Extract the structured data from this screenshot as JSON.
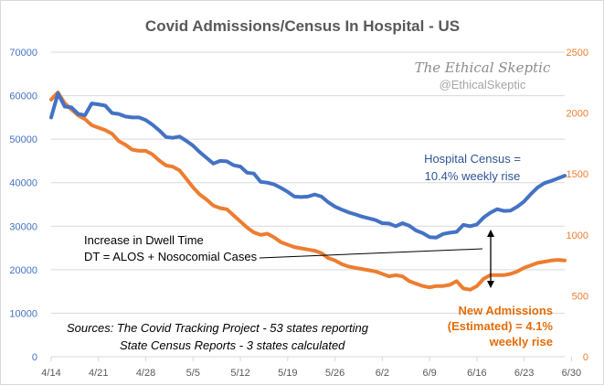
{
  "colors": {
    "census": "#4472c4",
    "admissions": "#ed7d31",
    "grid": "#d9d9d9",
    "title": "#595959"
  },
  "watermark": {
    "line1": "The Ethical Skeptic",
    "line2": "@EthicalSkeptic"
  },
  "annotations": {
    "census_label_1": "Hospital Census =",
    "census_label_2": "10.4% weekly rise",
    "dwell_line_1": "Increase in Dwell Time",
    "dwell_line_2": "DT = ALOS + Nosocomial Cases",
    "admissions_label_1": "New Admissions",
    "admissions_label_2": "(Estimated) = 4.1%",
    "admissions_label_3": "weekly rise",
    "sources_1": "Sources:  The Covid Tracking Project - 53 states reporting",
    "sources_2": "State Census Reports - 3 states calculated"
  },
  "chart_data": {
    "type": "line",
    "title": "Covid Admissions/Census  In Hospital  - US",
    "xlabel": "",
    "ylabel": "",
    "x_start": "4/14",
    "x_tick_labels": [
      "4/14",
      "4/21",
      "4/28",
      "5/5",
      "5/12",
      "5/19",
      "5/26",
      "6/2",
      "6/9",
      "6/16",
      "6/23",
      "6/30"
    ],
    "y_left": {
      "min": 0,
      "max": 70000,
      "ticks": [
        0,
        10000,
        20000,
        30000,
        40000,
        50000,
        60000,
        70000
      ]
    },
    "y_right": {
      "min": 0,
      "max": 2500,
      "ticks": [
        0,
        500,
        1000,
        1500,
        2000,
        2500
      ]
    },
    "grid": true,
    "series": [
      {
        "name": "Hospital Census",
        "axis": "left",
        "values": [
          55000,
          60500,
          57500,
          57300,
          55800,
          55500,
          58200,
          58000,
          57700,
          56000,
          55800,
          55200,
          55000,
          55000,
          54400,
          53300,
          52000,
          50500,
          50300,
          50600,
          49600,
          48500,
          47000,
          45700,
          44400,
          45000,
          44900,
          44000,
          43700,
          42300,
          42100,
          40200,
          40000,
          39600,
          38800,
          37900,
          36800,
          36700,
          36800,
          37300,
          36800,
          35500,
          34500,
          33800,
          33200,
          32700,
          32200,
          31800,
          31400,
          30700,
          30600,
          30000,
          30700,
          30100,
          29000,
          28400,
          27500,
          27400,
          28200,
          28500,
          28700,
          30300,
          30000,
          30400,
          32000,
          33100,
          33900,
          33500,
          33600,
          34500,
          35700,
          37400,
          38900,
          39900,
          40400,
          41000,
          41600
        ]
      },
      {
        "name": "New Admissions (Estimated)",
        "axis": "right",
        "values": [
          2110,
          2170,
          2080,
          2030,
          1980,
          1950,
          1900,
          1880,
          1860,
          1830,
          1770,
          1740,
          1700,
          1690,
          1690,
          1660,
          1610,
          1570,
          1560,
          1530,
          1460,
          1390,
          1330,
          1290,
          1240,
          1220,
          1210,
          1160,
          1110,
          1060,
          1020,
          1000,
          1010,
          980,
          940,
          920,
          900,
          890,
          880,
          870,
          850,
          810,
          790,
          760,
          740,
          730,
          720,
          710,
          700,
          680,
          660,
          670,
          660,
          620,
          600,
          580,
          570,
          580,
          580,
          590,
          620,
          560,
          550,
          580,
          640,
          670,
          670,
          670,
          680,
          700,
          730,
          750,
          770,
          780,
          790,
          795,
          790
        ]
      }
    ]
  }
}
